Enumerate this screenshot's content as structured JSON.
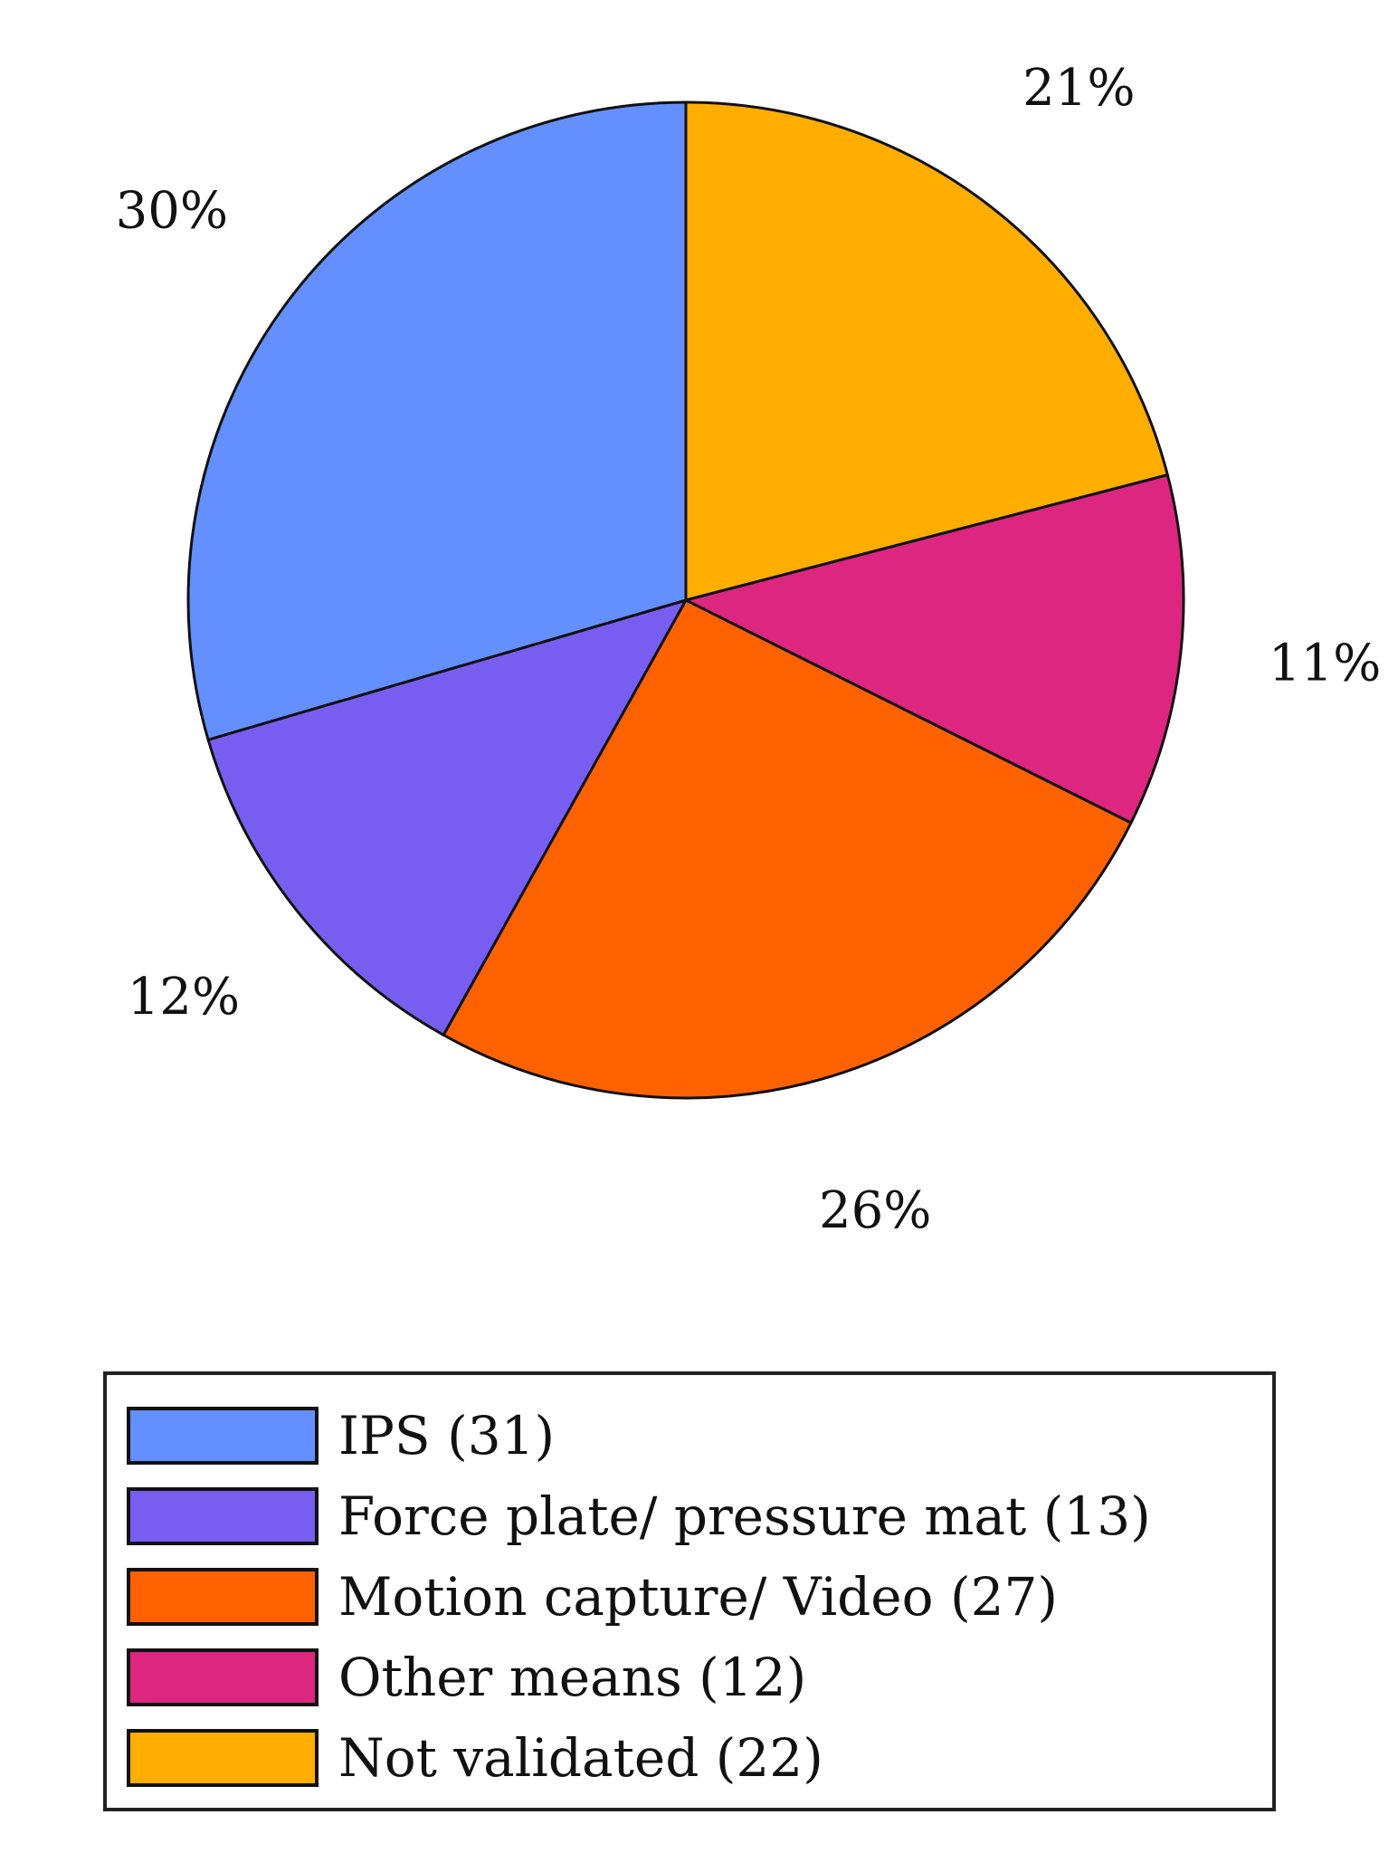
{
  "chart_data": {
    "type": "pie",
    "title": "",
    "start": "12 o'clock",
    "direction": "clockwise",
    "slices": [
      {
        "key": "not_validated",
        "name": "Not validated",
        "count": 22,
        "percent_label": "21%",
        "color": "#FFAE00"
      },
      {
        "key": "other_means",
        "name": "Other means",
        "count": 12,
        "percent_label": "11%",
        "color": "#DC267F"
      },
      {
        "key": "motion_capture",
        "name": "Motion capture/ Video",
        "count": 27,
        "percent_label": "26%",
        "color": "#FE6100"
      },
      {
        "key": "force_plate",
        "name": "Force plate/ pressure mat",
        "count": 13,
        "percent_label": "12%",
        "color": "#785EF0"
      },
      {
        "key": "ips",
        "name": "IPS",
        "count": 31,
        "percent_label": "30%",
        "color": "#648FFF"
      }
    ],
    "legend": {
      "placement": "bottom",
      "entries": [
        {
          "label": "IPS (31)",
          "color": "#648FFF"
        },
        {
          "label": "Force plate/ pressure mat (13)",
          "color": "#785EF0"
        },
        {
          "label": "Motion capture/ Video (27)",
          "color": "#FE6100"
        },
        {
          "label": "Other means (12)",
          "color": "#DC267F"
        },
        {
          "label": "Not validated (22)",
          "color": "#FFAE00"
        }
      ]
    }
  }
}
